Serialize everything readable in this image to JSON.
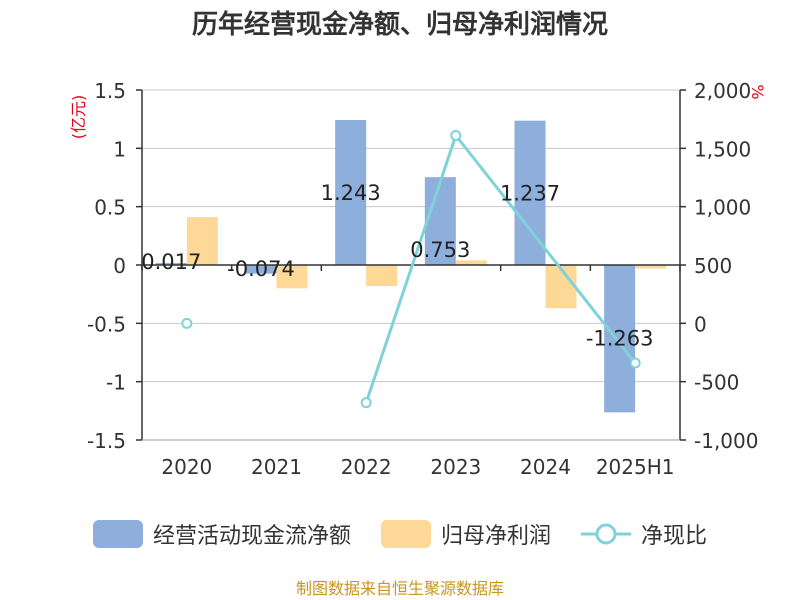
{
  "chart_data": {
    "type": "bar",
    "title": "历年经营现金净额、归母净利润情况",
    "categories": [
      "2020",
      "2021",
      "2022",
      "2023",
      "2024",
      "2025H1"
    ],
    "left_axis": {
      "unit": "(亿元)",
      "ylim": [
        -1.5,
        1.5
      ],
      "ticks": [
        1.5,
        1,
        0.5,
        0,
        -0.5,
        -1,
        -1.5
      ],
      "tick_labels": [
        "1.5",
        "1",
        "0.5",
        "0",
        "-0.5",
        "-1",
        "-1.5"
      ]
    },
    "right_axis": {
      "unit": "%",
      "ylim": [
        -1000,
        2000
      ],
      "ticks": [
        2000,
        1500,
        1000,
        500,
        0,
        -500,
        -1000
      ],
      "tick_labels": [
        "2,000",
        "1,500",
        "1,000",
        "500",
        "0",
        "-500",
        "-1,000"
      ]
    },
    "series": [
      {
        "name": "经营活动现金流净额",
        "type": "bar",
        "axis": "left",
        "color": "#8eaedb",
        "values": [
          0.017,
          -0.074,
          1.243,
          0.753,
          1.237,
          -1.263
        ],
        "labels": [
          "0.017",
          "-0.074",
          "1.243",
          "0.753",
          "1.237",
          "-1.263"
        ]
      },
      {
        "name": "归母净利润",
        "type": "bar",
        "axis": "left",
        "color": "#fdd896",
        "values": [
          0.41,
          -0.2,
          -0.18,
          0.04,
          -0.37,
          -0.03
        ]
      },
      {
        "name": "净现比",
        "type": "line",
        "axis": "right",
        "color": "#7fd3d8",
        "values": [
          0,
          null,
          -680,
          1610,
          null,
          -340
        ]
      }
    ]
  },
  "source": "制图数据来自恒生聚源数据库"
}
